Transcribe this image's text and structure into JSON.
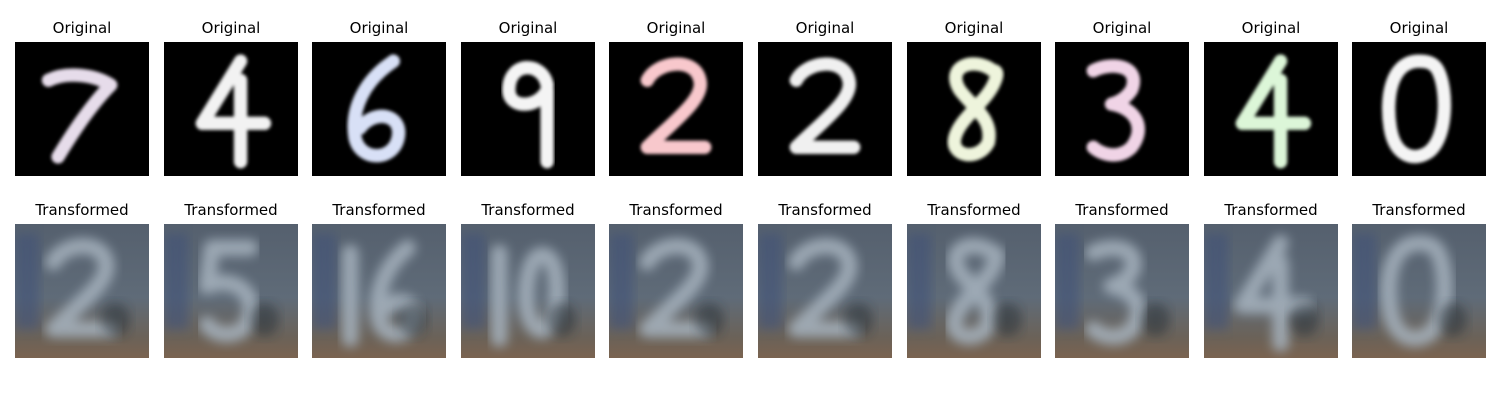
{
  "figure": {
    "panels": [
      {
        "digit": "7",
        "original_label": "Original",
        "transformed_label": "Transformed",
        "original_color": "#e6dcea",
        "transformed_digit": "2"
      },
      {
        "digit": "4",
        "original_label": "Original",
        "transformed_label": "Transformed",
        "original_color": "#f2f2f2",
        "transformed_digit": "5"
      },
      {
        "digit": "6",
        "original_label": "Original",
        "transformed_label": "Transformed",
        "original_color": "#d8e0f6",
        "transformed_digit": "16"
      },
      {
        "digit": "9",
        "original_label": "Original",
        "transformed_label": "Transformed",
        "original_color": "#f4f4f4",
        "transformed_digit": "10"
      },
      {
        "digit": "2",
        "original_label": "Original",
        "transformed_label": "Transformed",
        "original_color": "#f8c8cc",
        "transformed_digit": "2"
      },
      {
        "digit": "2",
        "original_label": "Original",
        "transformed_label": "Transformed",
        "original_color": "#f0f0f0",
        "transformed_digit": "2"
      },
      {
        "digit": "8",
        "original_label": "Original",
        "transformed_label": "Transformed",
        "original_color": "#eef4dc",
        "transformed_digit": "8"
      },
      {
        "digit": "3",
        "original_label": "Original",
        "transformed_label": "Transformed",
        "original_color": "#f0d4e6",
        "transformed_digit": "3"
      },
      {
        "digit": "4",
        "original_label": "Original",
        "transformed_label": "Transformed",
        "original_color": "#dcf6d8",
        "transformed_digit": "4"
      },
      {
        "digit": "0",
        "original_label": "Original",
        "transformed_label": "Transformed",
        "original_color": "#f4f4f4",
        "transformed_digit": "0"
      }
    ]
  }
}
